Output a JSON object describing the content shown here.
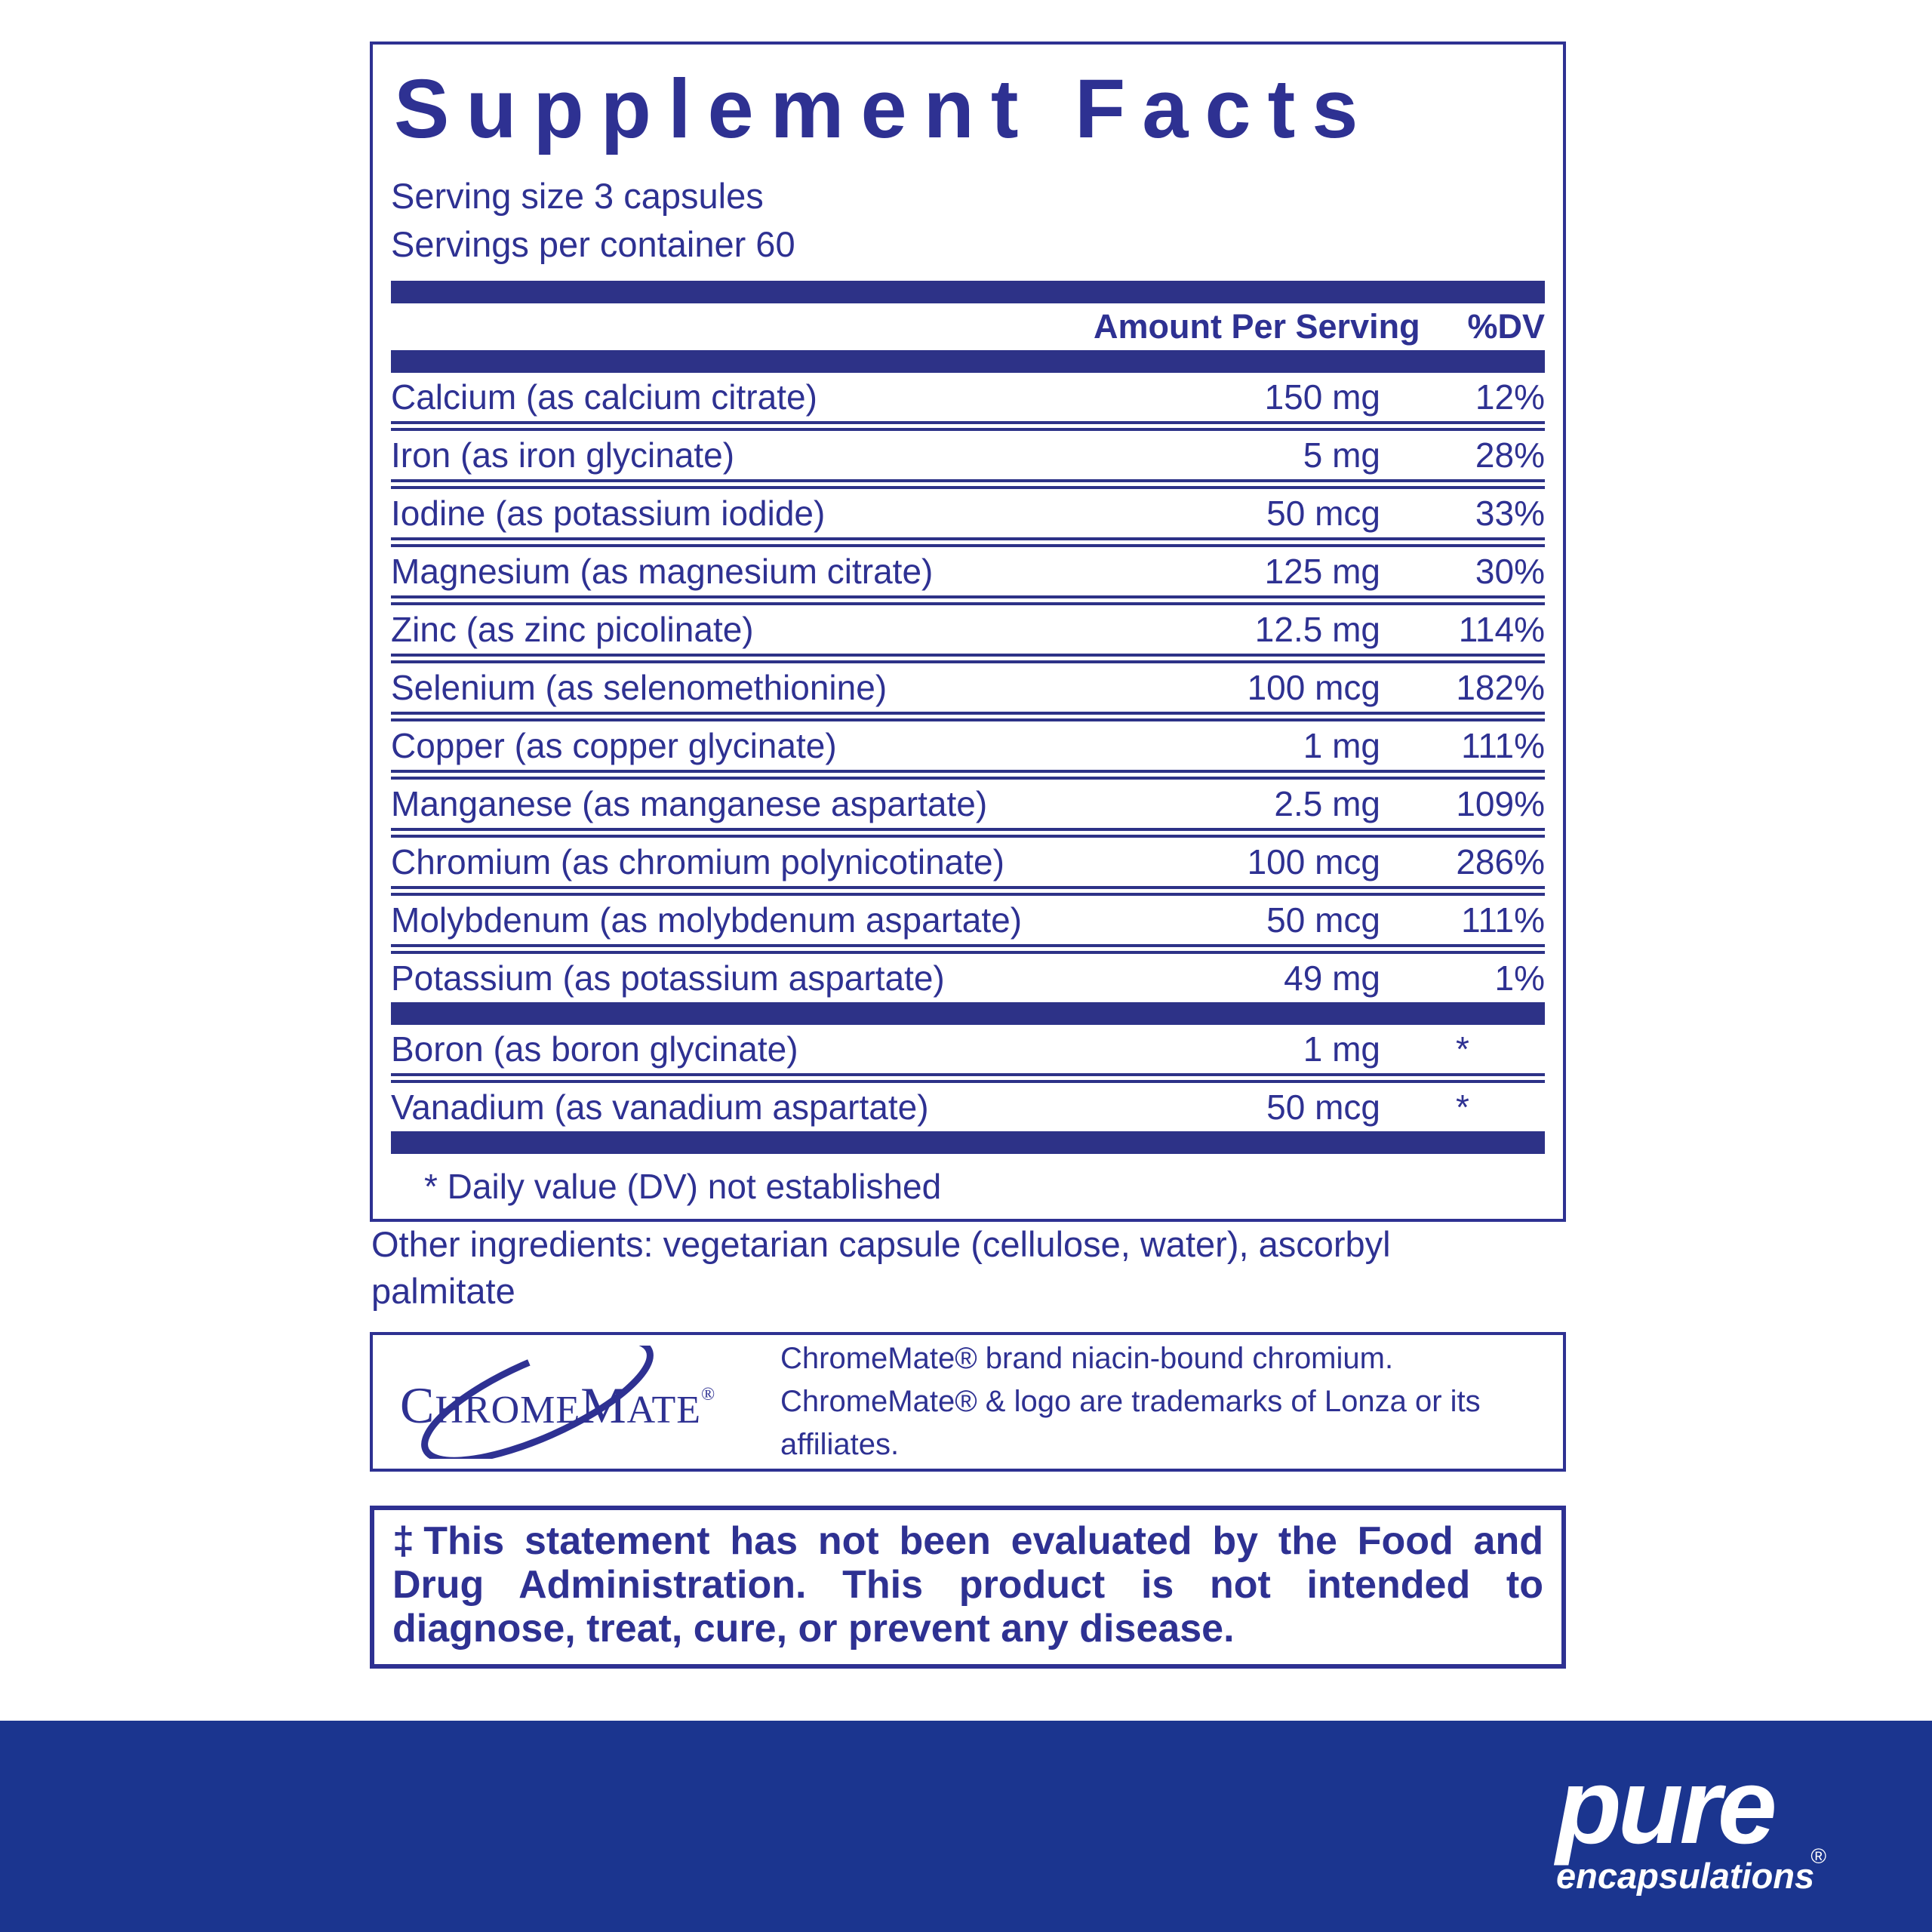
{
  "colors": {
    "navy_text": "#2e3192",
    "bar_navy": "#2d3287",
    "footer_bg": "#1b358f",
    "white": "#ffffff"
  },
  "supplement_facts": {
    "title": "Supplement Facts",
    "serving_size": "Serving size  3 capsules",
    "servings_per_container": "Servings per container  60",
    "columns": {
      "amount": "Amount Per Serving",
      "dv": "%DV"
    },
    "rows": [
      {
        "name": "Calcium (as calcium citrate)",
        "amount": "150 mg",
        "dv": "12%"
      },
      {
        "name": "Iron (as iron glycinate)",
        "amount": "5 mg",
        "dv": "28%"
      },
      {
        "name": "Iodine (as potassium iodide)",
        "amount": "50 mcg",
        "dv": "33%"
      },
      {
        "name": "Magnesium (as magnesium citrate)",
        "amount": "125 mg",
        "dv": "30%"
      },
      {
        "name": "Zinc (as zinc picolinate)",
        "amount": "12.5 mg",
        "dv": "114%"
      },
      {
        "name": "Selenium (as selenomethionine)",
        "amount": "100 mcg",
        "dv": "182%"
      },
      {
        "name": "Copper (as copper glycinate)",
        "amount": "1 mg",
        "dv": "111%"
      },
      {
        "name": "Manganese (as manganese aspartate)",
        "amount": "2.5 mg",
        "dv": "109%"
      },
      {
        "name": "Chromium (as chromium polynicotinate)",
        "amount": "100 mcg",
        "dv": "286%"
      },
      {
        "name": "Molybdenum (as molybdenum aspartate)",
        "amount": "50 mcg",
        "dv": "111%"
      },
      {
        "name": "Potassium (as potassium aspartate)",
        "amount": "49 mg",
        "dv": "1%"
      }
    ],
    "rows_no_dv": [
      {
        "name": "Boron (as boron glycinate)",
        "amount": "1 mg",
        "dv": "*"
      },
      {
        "name": "Vanadium (as vanadium aspartate)",
        "amount": "50 mcg",
        "dv": "*"
      }
    ],
    "footnote": "* Daily value (DV) not established"
  },
  "other_ingredients": "Other ingredients: vegetarian capsule (cellulose, water), ascorbyl palmitate",
  "chromemate": {
    "logo_text": "ChromeMate",
    "logo_reg": "®",
    "note": "ChromeMate® brand niacin-bound chromium. ChromeMate® & logo are trademarks of Lonza or its affiliates."
  },
  "fda_disclaimer": "‡This statement has not been evaluated by the Food and Drug Administration. This product is not intended to diagnose, treat, cure, or prevent any disease.",
  "footer": {
    "brand_primary": "pure",
    "brand_secondary": "encapsulations",
    "reg": "®"
  }
}
